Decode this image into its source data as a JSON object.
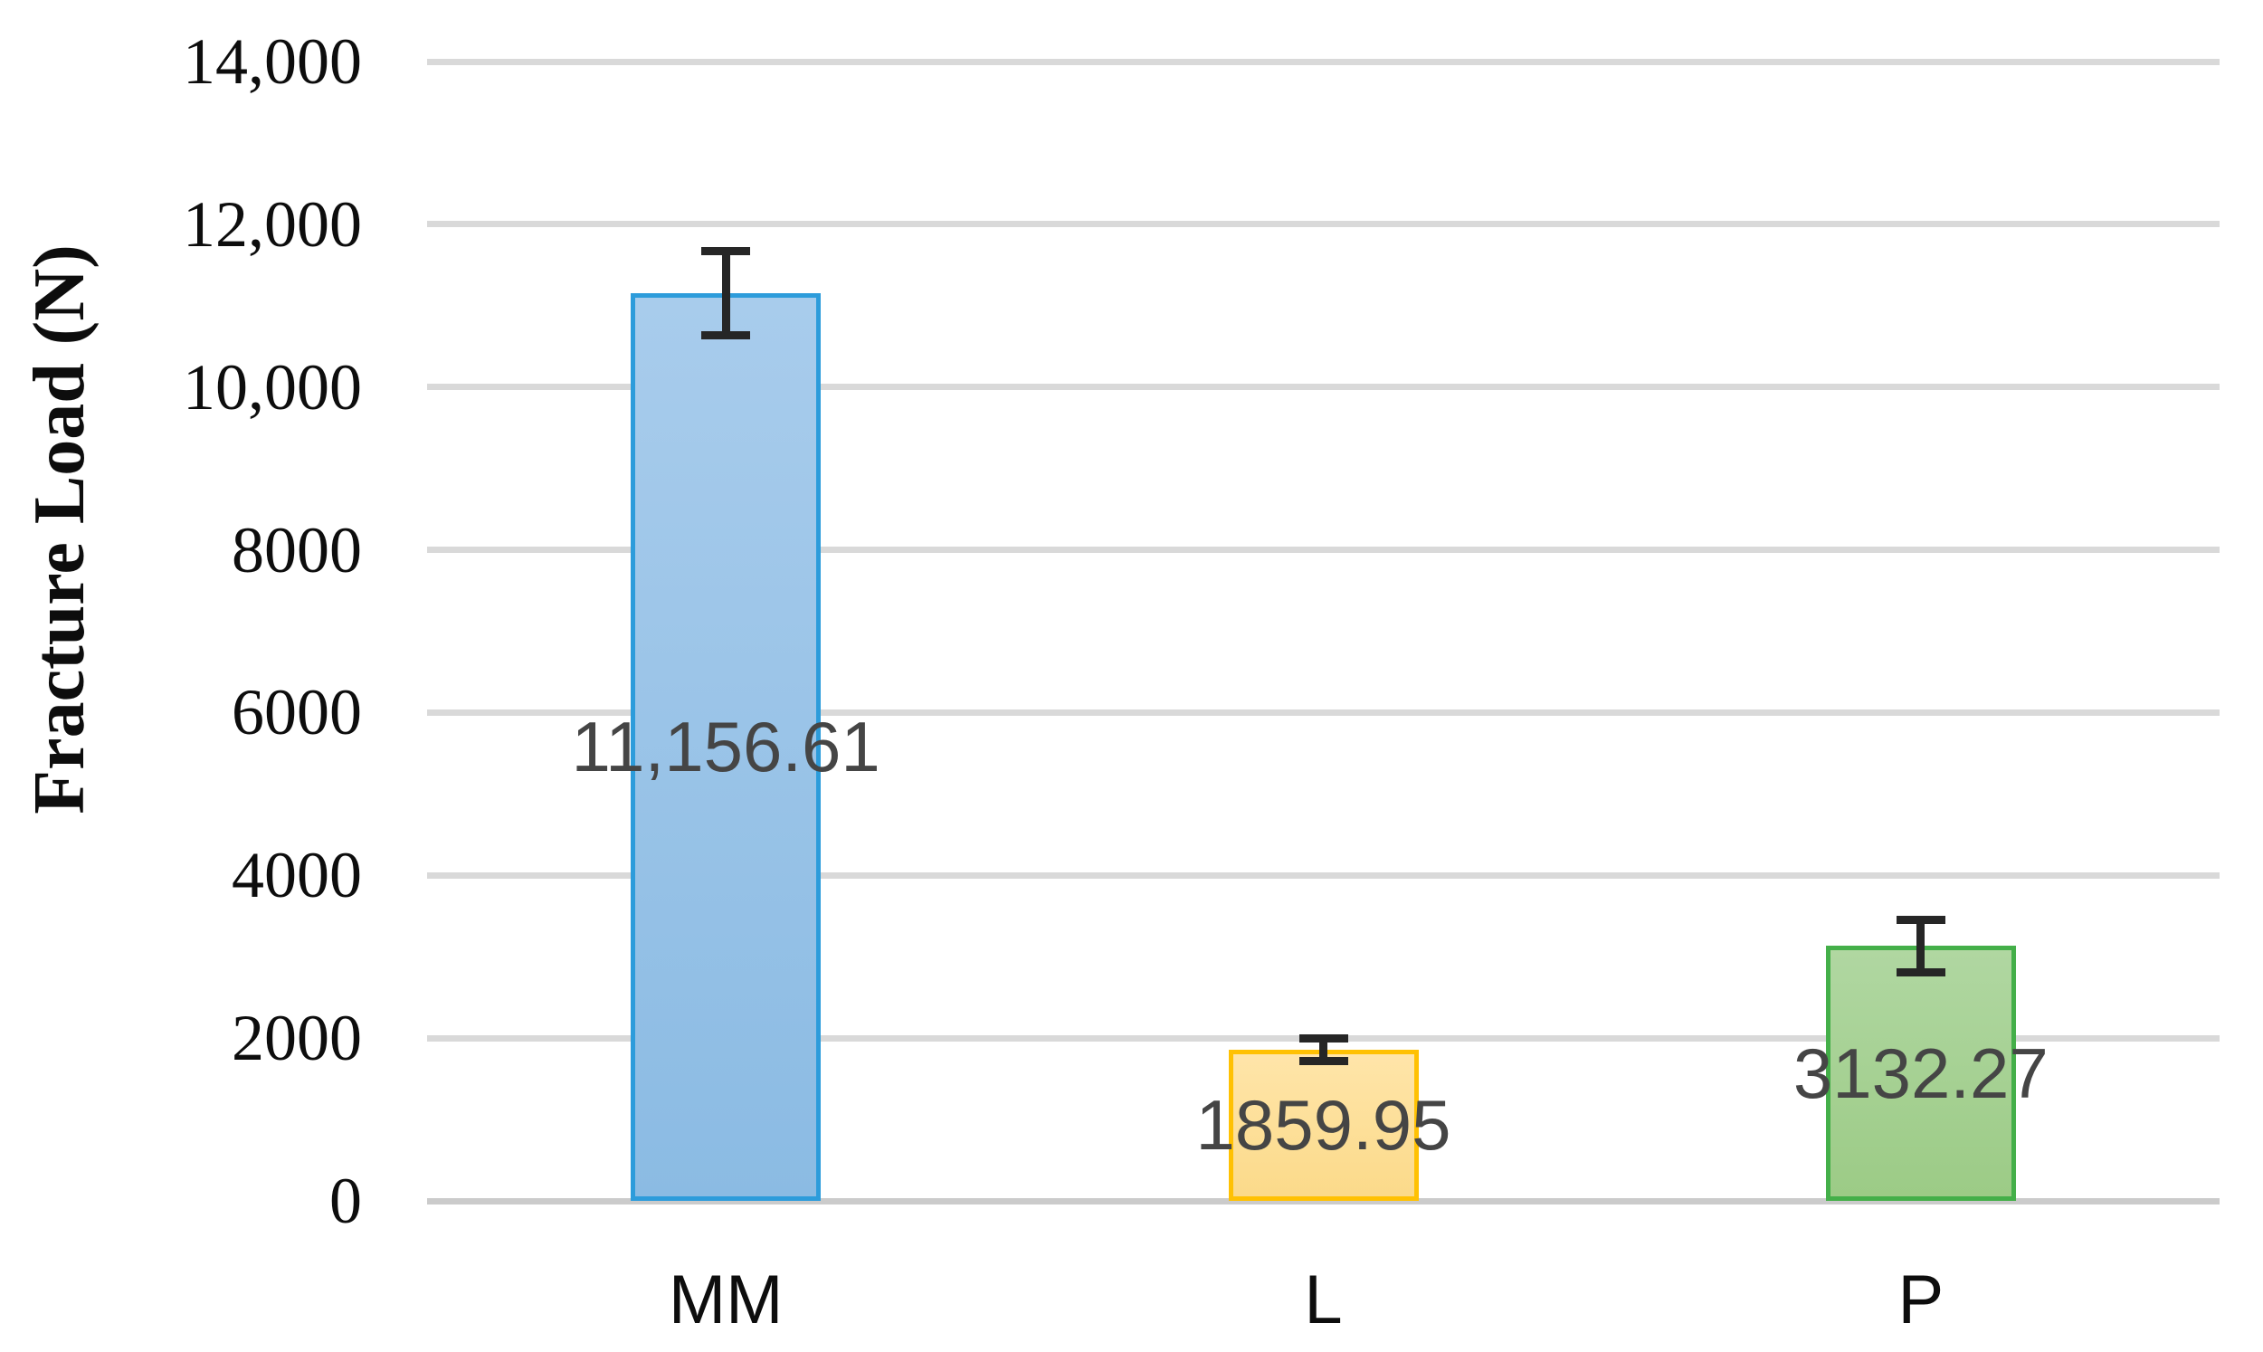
{
  "chart_data": {
    "type": "bar",
    "title": "",
    "xlabel": "",
    "ylabel": "Fracture Load (N)",
    "categories": [
      "MM",
      "L",
      "P"
    ],
    "values": [
      11156.61,
      1859.95,
      3132.27
    ],
    "data_labels": [
      "11,156.61",
      "1859.95",
      "3132.27"
    ],
    "error_values": [
      517,
      140,
      322
    ],
    "ylim": [
      0,
      14000
    ],
    "ytick_step": 2000,
    "ytick_labels": [
      "0",
      "2000",
      "4000",
      "6000",
      "8000",
      "10,000",
      "12,000",
      "14,000"
    ],
    "grid": true,
    "legend_position": "none",
    "bar_styles": [
      {
        "fill_top": "#a8ccec",
        "fill_bottom": "#8bbbe3",
        "border": "#2d9cdb"
      },
      {
        "fill_top": "#ffe5a9",
        "fill_bottom": "#fbda8a",
        "border": "#ffc103"
      },
      {
        "fill_top": "#b0d7a1",
        "fill_bottom": "#9ccb86",
        "border": "#44af49"
      }
    ],
    "gridline_color": "#d9d9d9",
    "error_bar_color": "#262626",
    "data_label_color": "#454545",
    "tick_label_color": "#0d0d0d"
  }
}
